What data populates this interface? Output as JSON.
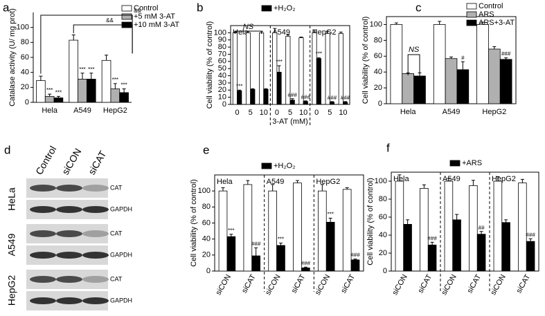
{
  "chart_data": [
    {
      "type": "bar",
      "panel": "a",
      "ylabel": "Catalase activity (U/ mg prot)",
      "categories": [
        "Hela",
        "A549",
        "HepG2"
      ],
      "ylim": [
        0,
        120
      ],
      "yticks": [
        0,
        20,
        40,
        60,
        80,
        100
      ],
      "annotations": [
        "&&",
        "&&"
      ],
      "series": [
        {
          "name": "Control",
          "color": "#ffffff",
          "values": [
            29,
            83,
            56
          ],
          "errors": [
            6,
            7,
            7
          ],
          "sig": [
            null,
            null,
            null
          ]
        },
        {
          "name": "+5 mM 3-AT",
          "color": "#b0b0b0",
          "values": [
            8,
            31,
            18
          ],
          "errors": [
            3,
            8,
            7
          ],
          "sig": [
            "***",
            "***",
            "***"
          ]
        },
        {
          "name": "+10 mM 3-AT",
          "color": "#000000",
          "values": [
            6,
            31,
            13
          ],
          "errors": [
            2,
            8,
            5
          ],
          "sig": [
            "***",
            "***",
            "***"
          ]
        }
      ]
    },
    {
      "type": "bar",
      "panel": "b",
      "ylabel": "Cell viability (% of control)",
      "xlabel": "3-AT (mM)",
      "groups": [
        "Hela",
        "A549",
        "HepG2"
      ],
      "categories": [
        "0",
        "5",
        "10",
        "0",
        "5",
        "10",
        "0",
        "5",
        "10"
      ],
      "ylim": [
        0,
        110
      ],
      "yticks": [
        0,
        10,
        20,
        30,
        40,
        50,
        60,
        70,
        80,
        90,
        100
      ],
      "annotations": [
        "NS"
      ],
      "series": [
        {
          "color": "#ffffff",
          "values": [
            100,
            100,
            100,
            100,
            95,
            93,
            100,
            99,
            99
          ],
          "errors": [
            1,
            2,
            2,
            6,
            2,
            1,
            4,
            3,
            2
          ],
          "sig": [
            null,
            null,
            null,
            null,
            null,
            null,
            null,
            null,
            null
          ]
        },
        {
          "name": "+H₂O₂",
          "color": "#000000",
          "values": [
            19,
            21,
            21,
            45,
            6,
            4,
            64,
            3,
            3
          ],
          "errors": [
            1,
            1,
            1,
            9,
            2,
            1,
            1,
            1,
            1
          ],
          "sig": [
            "***",
            null,
            null,
            "***",
            "###",
            "###",
            "***",
            "###",
            "###"
          ]
        }
      ]
    },
    {
      "type": "bar",
      "panel": "c",
      "ylabel": "Cell viability (% of control)",
      "categories": [
        "Hela",
        "A549",
        "HepG2"
      ],
      "ylim": [
        0,
        110
      ],
      "yticks": [
        0,
        20,
        40,
        60,
        80,
        100
      ],
      "annotations": [
        "NS"
      ],
      "series": [
        {
          "name": "Control",
          "color": "#ffffff",
          "values": [
            100,
            100,
            100
          ],
          "errors": [
            2,
            4,
            3
          ],
          "sig": [
            null,
            null,
            null
          ]
        },
        {
          "name": "ARS",
          "color": "#b0b0b0",
          "values": [
            38,
            57,
            69
          ],
          "errors": [
            1,
            2,
            3
          ],
          "sig": [
            null,
            null,
            null
          ]
        },
        {
          "name": "ARS+3-AT",
          "color": "#000000",
          "values": [
            35,
            43,
            56
          ],
          "errors": [
            4,
            10,
            2
          ],
          "sig": [
            null,
            "#",
            "###"
          ]
        }
      ]
    },
    {
      "type": "bar",
      "panel": "e",
      "ylabel": "Cell viability (% of control)",
      "xtick_rotation": -60,
      "groups": [
        "Hela",
        "A549",
        "HepG2"
      ],
      "categories": [
        "siCON",
        "siCAT",
        "siCON",
        "siCAT",
        "siCON",
        "siCAT"
      ],
      "ylim": [
        0,
        120
      ],
      "yticks": [
        0,
        20,
        40,
        60,
        80,
        100
      ],
      "series": [
        {
          "color": "#ffffff",
          "values": [
            100,
            108,
            100,
            110,
            100,
            102
          ],
          "errors": [
            4,
            5,
            8,
            3,
            8,
            2
          ],
          "sig": [
            null,
            null,
            null,
            null,
            null,
            null
          ]
        },
        {
          "name": "+H₂O₂",
          "color": "#000000",
          "values": [
            43,
            19,
            32,
            4,
            61,
            14
          ],
          "errors": [
            3,
            10,
            3,
            1,
            5,
            1
          ],
          "sig": [
            "***",
            "###",
            "***",
            "###",
            "***",
            "###"
          ]
        }
      ]
    },
    {
      "type": "bar",
      "panel": "f",
      "ylabel": "Cell viability (% of control)",
      "xtick_rotation": -60,
      "groups": [
        "Hela",
        "A549",
        "HepG2"
      ],
      "categories": [
        "siCON",
        "siCAT",
        "siCON",
        "siCAT",
        "siCON",
        "siCAT"
      ],
      "ylim": [
        0,
        110
      ],
      "yticks": [
        0,
        20,
        40,
        60,
        80,
        100
      ],
      "series": [
        {
          "color": "#ffffff",
          "values": [
            100,
            92,
            100,
            95,
            100,
            98
          ],
          "errors": [
            7,
            4,
            3,
            6,
            5,
            4
          ],
          "sig": [
            null,
            null,
            null,
            null,
            null,
            null
          ]
        },
        {
          "name": "+ARS",
          "color": "#000000",
          "values": [
            52,
            29,
            57,
            41,
            54,
            33
          ],
          "errors": [
            5,
            3,
            6,
            3,
            3,
            3
          ],
          "sig": [
            null,
            "###",
            null,
            "##",
            null,
            "###"
          ]
        }
      ]
    }
  ],
  "blot": {
    "panel": "d",
    "columns": [
      "Control",
      "siCON",
      "siCAT"
    ],
    "rows": [
      {
        "label": "HeLa",
        "bands": [
          "CAT",
          "GAPDH"
        ]
      },
      {
        "label": "A549",
        "bands": [
          "CAT",
          "GAPDH"
        ]
      },
      {
        "label": "HepG2",
        "bands": [
          "CAT",
          "GAPDH"
        ]
      }
    ]
  }
}
